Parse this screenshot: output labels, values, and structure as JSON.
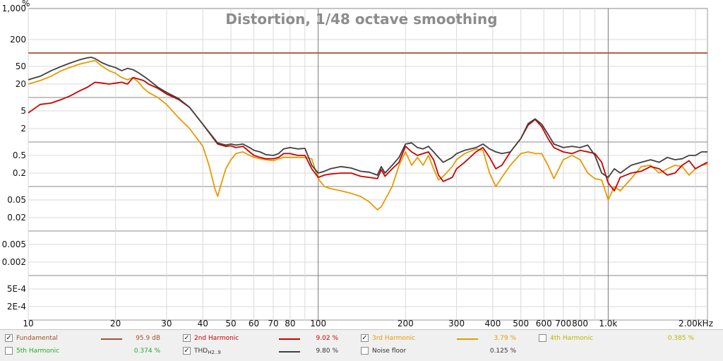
{
  "chart_data": {
    "type": "line",
    "title": "Distortion, 1/48 octave smoothing",
    "ylabel": "%",
    "xlabel": "",
    "x_scale": "log",
    "y_scale": "log",
    "xlim": [
      10,
      2200
    ],
    "ylim": [
      0.0001,
      1000
    ],
    "grid": true,
    "y_ticks": [
      {
        "v": 1000,
        "label": "1,000"
      },
      {
        "v": 200,
        "label": "200"
      },
      {
        "v": 50,
        "label": "50"
      },
      {
        "v": 20,
        "label": "20"
      },
      {
        "v": 5,
        "label": "5"
      },
      {
        "v": 2,
        "label": "2"
      },
      {
        "v": 0.5,
        "label": "0.5"
      },
      {
        "v": 0.2,
        "label": "0.2"
      },
      {
        "v": 0.05,
        "label": "0.05"
      },
      {
        "v": 0.02,
        "label": "0.02"
      },
      {
        "v": 0.005,
        "label": "0.005"
      },
      {
        "v": 0.002,
        "label": "0.002"
      },
      {
        "v": 0.0005,
        "label": "5E-4"
      },
      {
        "v": 0.0002,
        "label": "2E-4"
      }
    ],
    "x_ticks": [
      {
        "v": 10,
        "label": "10"
      },
      {
        "v": 20,
        "label": "20"
      },
      {
        "v": 30,
        "label": "30"
      },
      {
        "v": 40,
        "label": "40"
      },
      {
        "v": 50,
        "label": "50"
      },
      {
        "v": 60,
        "label": "60"
      },
      {
        "v": 70,
        "label": "70"
      },
      {
        "v": 80,
        "label": "80"
      },
      {
        "v": 100,
        "label": "100"
      },
      {
        "v": 200,
        "label": "200"
      },
      {
        "v": 300,
        "label": "300"
      },
      {
        "v": 400,
        "label": "400"
      },
      {
        "v": 500,
        "label": "500"
      },
      {
        "v": 600,
        "label": "600"
      },
      {
        "v": 700,
        "label": "700"
      },
      {
        "v": 800,
        "label": "800"
      },
      {
        "v": 1000,
        "label": "1.0k"
      },
      {
        "v": 2000,
        "label": "2.00kHz"
      }
    ],
    "series": [
      {
        "name": "Fundamental",
        "color": "#a0522d",
        "x": [
          10,
          2200
        ],
        "y": [
          100,
          100
        ]
      },
      {
        "name": "THD H2..9",
        "color": "#404040",
        "x": [
          10,
          11,
          12,
          13,
          14,
          15,
          16,
          16.5,
          17,
          18,
          19,
          20,
          21,
          22,
          23,
          24,
          25,
          26,
          28,
          30,
          33,
          36,
          40,
          45,
          48,
          50,
          52,
          55,
          58,
          60,
          63,
          66,
          70,
          73,
          76,
          80,
          85,
          90,
          95,
          100,
          105,
          110,
          120,
          130,
          140,
          150,
          160,
          165,
          170,
          180,
          190,
          200,
          210,
          220,
          230,
          240,
          250,
          260,
          270,
          290,
          300,
          320,
          350,
          370,
          390,
          410,
          430,
          460,
          500,
          530,
          560,
          590,
          620,
          650,
          700,
          750,
          800,
          850,
          900,
          950,
          1000,
          1050,
          1100,
          1200,
          1300,
          1400,
          1500,
          1600,
          1700,
          1800,
          1900,
          2000,
          2100,
          2200
        ],
        "y": [
          25,
          30,
          40,
          50,
          60,
          70,
          78,
          80,
          75,
          60,
          52,
          47,
          40,
          45,
          42,
          36,
          30,
          25,
          17,
          13,
          9.5,
          6,
          2.5,
          0.95,
          0.85,
          0.9,
          0.85,
          0.9,
          0.75,
          0.65,
          0.6,
          0.52,
          0.5,
          0.55,
          0.7,
          0.75,
          0.7,
          0.72,
          0.3,
          0.2,
          0.22,
          0.25,
          0.28,
          0.26,
          0.22,
          0.21,
          0.18,
          0.28,
          0.2,
          0.3,
          0.45,
          0.9,
          0.95,
          0.75,
          0.7,
          0.8,
          0.6,
          0.45,
          0.35,
          0.45,
          0.55,
          0.65,
          0.75,
          0.9,
          0.7,
          0.6,
          0.55,
          0.6,
          1.2,
          2.6,
          3.3,
          2.5,
          1.5,
          0.9,
          0.75,
          0.8,
          0.75,
          0.85,
          0.5,
          0.2,
          0.16,
          0.25,
          0.2,
          0.3,
          0.35,
          0.4,
          0.35,
          0.45,
          0.4,
          0.42,
          0.5,
          0.5,
          0.6,
          0.6
        ]
      },
      {
        "name": "2nd Harmonic",
        "color": "#cc0000",
        "x": [
          10,
          11,
          12,
          13,
          14,
          15,
          16,
          17,
          18,
          19,
          20,
          21,
          22,
          23,
          24,
          25,
          26,
          28,
          30,
          33,
          36,
          40,
          45,
          48,
          50,
          52,
          55,
          58,
          60,
          63,
          66,
          70,
          73,
          76,
          80,
          85,
          90,
          95,
          100,
          105,
          110,
          120,
          130,
          140,
          150,
          160,
          165,
          170,
          180,
          190,
          200,
          210,
          220,
          230,
          240,
          250,
          260,
          270,
          290,
          300,
          320,
          350,
          370,
          390,
          410,
          430,
          460,
          500,
          530,
          560,
          590,
          620,
          650,
          700,
          750,
          800,
          850,
          900,
          950,
          1000,
          1050,
          1100,
          1200,
          1300,
          1400,
          1500,
          1600,
          1700,
          1800,
          1900,
          2000,
          2100,
          2200
        ],
        "y": [
          4.5,
          7,
          7.5,
          9,
          11,
          14,
          17,
          22,
          21,
          20,
          21,
          22,
          20,
          28,
          26,
          24,
          20,
          16,
          12,
          9,
          6,
          2.5,
          0.9,
          0.8,
          0.82,
          0.75,
          0.8,
          0.6,
          0.5,
          0.45,
          0.42,
          0.42,
          0.45,
          0.55,
          0.55,
          0.5,
          0.5,
          0.25,
          0.16,
          0.18,
          0.19,
          0.2,
          0.2,
          0.17,
          0.16,
          0.15,
          0.24,
          0.17,
          0.25,
          0.35,
          0.8,
          0.6,
          0.5,
          0.55,
          0.6,
          0.4,
          0.18,
          0.13,
          0.16,
          0.25,
          0.35,
          0.6,
          0.75,
          0.45,
          0.25,
          0.3,
          0.6,
          1.2,
          2.4,
          3.2,
          2.2,
          1.2,
          0.75,
          0.6,
          0.55,
          0.65,
          0.6,
          0.55,
          0.35,
          0.12,
          0.08,
          0.16,
          0.2,
          0.22,
          0.28,
          0.25,
          0.18,
          0.2,
          0.3,
          0.38,
          0.25,
          0.3,
          0.35
        ]
      },
      {
        "name": "3rd Harmonic",
        "color": "#e89a00",
        "x": [
          10,
          11,
          12,
          13,
          14,
          15,
          16,
          17,
          18,
          19,
          20,
          21,
          22,
          23,
          24,
          25,
          26,
          28,
          30,
          33,
          36,
          40,
          42,
          44,
          45,
          46,
          48,
          50,
          52,
          55,
          58,
          60,
          63,
          66,
          70,
          73,
          76,
          80,
          85,
          90,
          95,
          100,
          105,
          110,
          120,
          130,
          140,
          150,
          160,
          165,
          170,
          180,
          190,
          200,
          210,
          220,
          230,
          240,
          250,
          260,
          270,
          290,
          300,
          320,
          350,
          370,
          390,
          410,
          430,
          460,
          500,
          530,
          560,
          590,
          620,
          650,
          700,
          750,
          800,
          850,
          900,
          950,
          1000,
          1050,
          1100,
          1200,
          1300,
          1400,
          1500,
          1600,
          1700,
          1800,
          1900,
          2000,
          2100,
          2200
        ],
        "y": [
          20,
          24,
          30,
          40,
          48,
          56,
          62,
          68,
          50,
          40,
          35,
          28,
          25,
          28,
          22,
          16,
          13,
          10,
          7,
          3.5,
          2,
          0.8,
          0.3,
          0.09,
          0.06,
          0.1,
          0.25,
          0.4,
          0.55,
          0.6,
          0.5,
          0.45,
          0.42,
          0.4,
          0.38,
          0.42,
          0.45,
          0.45,
          0.45,
          0.45,
          0.42,
          0.15,
          0.1,
          0.09,
          0.08,
          0.07,
          0.06,
          0.045,
          0.03,
          0.035,
          0.05,
          0.1,
          0.3,
          0.6,
          0.3,
          0.45,
          0.3,
          0.5,
          0.25,
          0.14,
          0.17,
          0.28,
          0.4,
          0.55,
          0.7,
          0.65,
          0.2,
          0.1,
          0.16,
          0.3,
          0.55,
          0.6,
          0.55,
          0.55,
          0.3,
          0.15,
          0.4,
          0.5,
          0.4,
          0.2,
          0.15,
          0.14,
          0.05,
          0.1,
          0.08,
          0.15,
          0.28,
          0.3,
          0.2,
          0.25,
          0.3,
          0.28,
          0.18,
          0.25,
          0.3,
          0.32
        ]
      }
    ]
  },
  "legend": [
    {
      "id": "fundamental",
      "checked": true,
      "checkmark": "✓",
      "name": "Fundamental",
      "value": "95.9 dB",
      "color": "#a0522d",
      "text_color": "#a0522d"
    },
    {
      "id": "h2",
      "checked": true,
      "checkmark": "✓",
      "name": "2nd Harmonic",
      "value": "9.02 %",
      "color": "#cc0000",
      "text_color": "#cc0000"
    },
    {
      "id": "h3",
      "checked": true,
      "checkmark": "✓",
      "name": "3rd Harmonic",
      "value": "3.79 %",
      "color": "#e89a00",
      "text_color": "#e89a00"
    },
    {
      "id": "h4",
      "checked": false,
      "checkmark": "",
      "name": "4th Harmonic",
      "value": "0.385 %",
      "color": "#cccc00",
      "text_color": "#b8b800"
    },
    {
      "id": "h5",
      "checked": false,
      "checkmark": "",
      "name": "5th Harmonic",
      "value": "0.374 %",
      "color": "#33aa33",
      "text_color": "#22aa22"
    },
    {
      "id": "thd",
      "checked": true,
      "checkmark": "✓",
      "name": "THD",
      "name_sub": "H2..9",
      "value": "9.80 %",
      "color": "#404040",
      "text_color": "#333333"
    },
    {
      "id": "noise",
      "checked": false,
      "checkmark": "",
      "name": "Noise floor",
      "value": "0.125 %",
      "color": "#888888",
      "text_color": "#333333"
    }
  ]
}
